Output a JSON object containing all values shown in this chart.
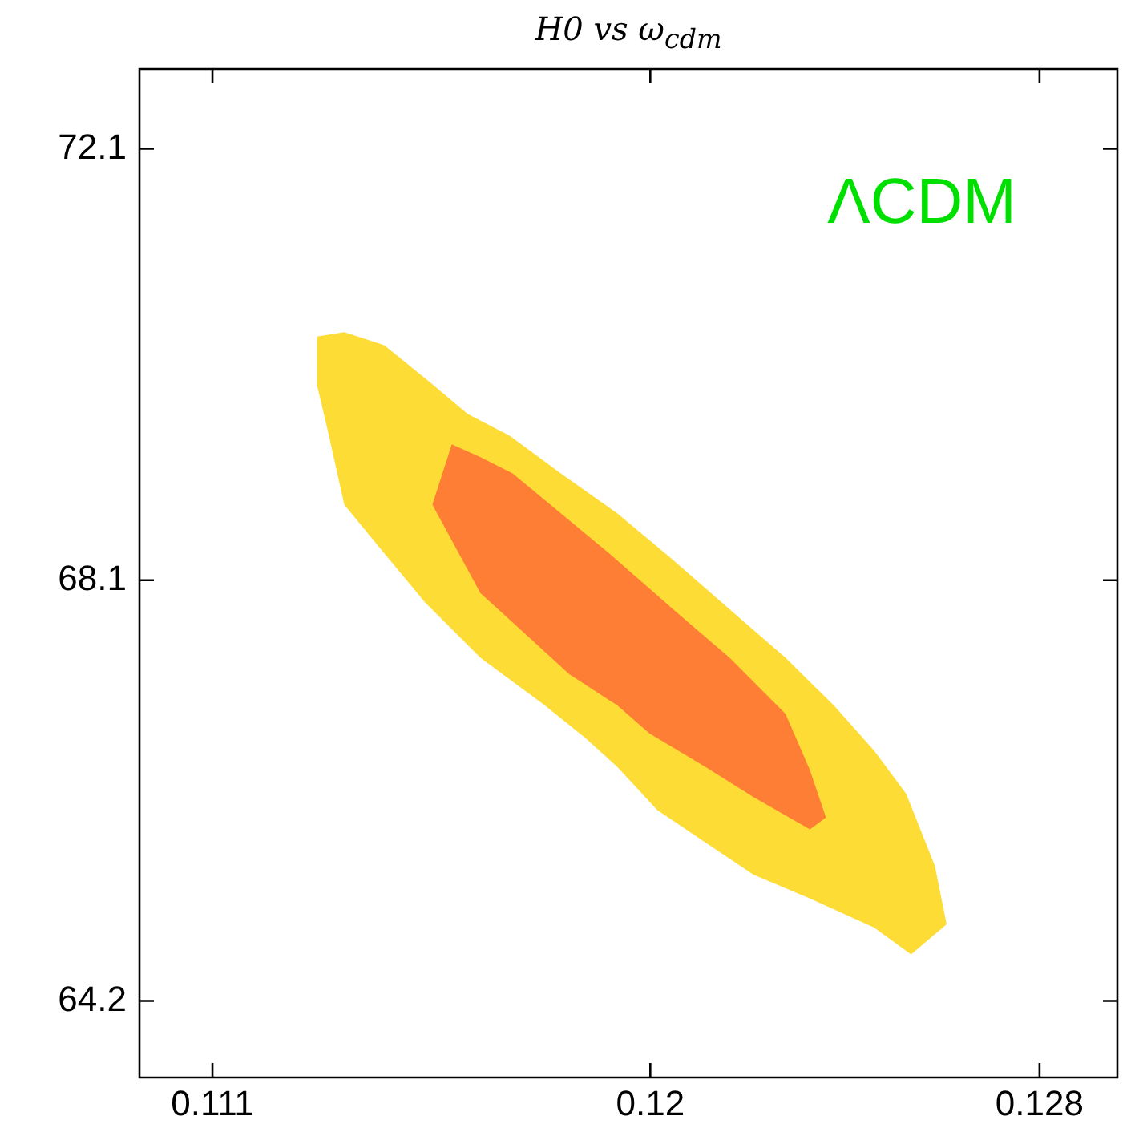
{
  "chart_data": {
    "type": "area",
    "title": "H0 vs ω$_{cdm}$",
    "annotations": [
      "ΛCDM"
    ],
    "xlim": [
      0.1095,
      0.1296
    ],
    "xticks": [
      0.111,
      0.12,
      0.128
    ],
    "ylim": [
      63.49,
      72.84
    ],
    "yticks": [
      72.1,
      68.1,
      64.2
    ],
    "grid": false,
    "legend": false,
    "marker": "none",
    "series": [
      {
        "color": "#fddc35",
        "x": [
          0.11315,
          0.11371,
          0.11453,
          0.11546,
          0.11625,
          0.11711,
          0.11816,
          0.11932,
          0.12041,
          0.12163,
          0.12278,
          0.12377,
          0.1246,
          0.12526,
          0.12585,
          0.12609,
          0.12536,
          0.1246,
          0.12328,
          0.12212,
          0.12113,
          0.12014,
          0.11932,
          0.11866,
          0.11783,
          0.11651,
          0.11536,
          0.11453,
          0.11371,
          0.11338,
          0.11315
        ],
        "values": [
          70.36,
          70.4,
          70.28,
          69.94,
          69.64,
          69.44,
          69.09,
          68.72,
          68.31,
          67.83,
          67.38,
          66.94,
          66.52,
          66.12,
          65.45,
          64.91,
          64.63,
          64.88,
          65.15,
          65.37,
          65.67,
          65.97,
          66.37,
          66.64,
          66.94,
          67.38,
          67.9,
          68.35,
          68.8,
          69.47,
          69.91
        ]
      },
      {
        "color": "#fe7e35",
        "x": [
          0.11592,
          0.11651,
          0.11717,
          0.11816,
          0.11915,
          0.12047,
          0.12163,
          0.12278,
          0.12328,
          0.12361,
          0.12328,
          0.12212,
          0.12113,
          0.11998,
          0.11932,
          0.11833,
          0.11734,
          0.11651,
          0.11552
        ],
        "values": [
          69.36,
          69.24,
          69.09,
          68.72,
          68.35,
          67.83,
          67.38,
          66.86,
          66.34,
          65.9,
          65.79,
          66.09,
          66.37,
          66.68,
          66.94,
          67.23,
          67.64,
          67.98,
          68.8
        ]
      }
    ]
  }
}
